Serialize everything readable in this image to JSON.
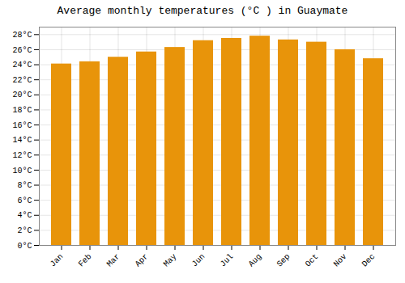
{
  "chart_data": {
    "type": "bar",
    "title": "Average monthly temperatures (°C ) in Guaymate",
    "categories": [
      "Jan",
      "Feb",
      "Mar",
      "Apr",
      "May",
      "Jun",
      "Jul",
      "Aug",
      "Sep",
      "Oct",
      "Nov",
      "Dec"
    ],
    "values": [
      24.1,
      24.4,
      25.0,
      25.7,
      26.3,
      27.2,
      27.5,
      27.8,
      27.3,
      27.0,
      26.0,
      24.8
    ],
    "color": "#E8940A",
    "ylim": [
      0,
      29
    ],
    "yticks": [
      {
        "value": 0,
        "label": "0°C"
      },
      {
        "value": 2,
        "label": "2°C"
      },
      {
        "value": 4,
        "label": "4°C"
      },
      {
        "value": 6,
        "label": "6°C"
      },
      {
        "value": 8,
        "label": "8°C"
      },
      {
        "value": 10,
        "label": "10°C"
      },
      {
        "value": 12,
        "label": "12°C"
      },
      {
        "value": 14,
        "label": "14°C"
      },
      {
        "value": 16,
        "label": "16°C"
      },
      {
        "value": 18,
        "label": "18°C"
      },
      {
        "value": 20,
        "label": "20°C"
      },
      {
        "value": 22,
        "label": "22°C"
      },
      {
        "value": 24,
        "label": "24°C"
      },
      {
        "value": 26,
        "label": "26°C"
      },
      {
        "value": 28,
        "label": "28°C"
      }
    ],
    "grid": true
  }
}
